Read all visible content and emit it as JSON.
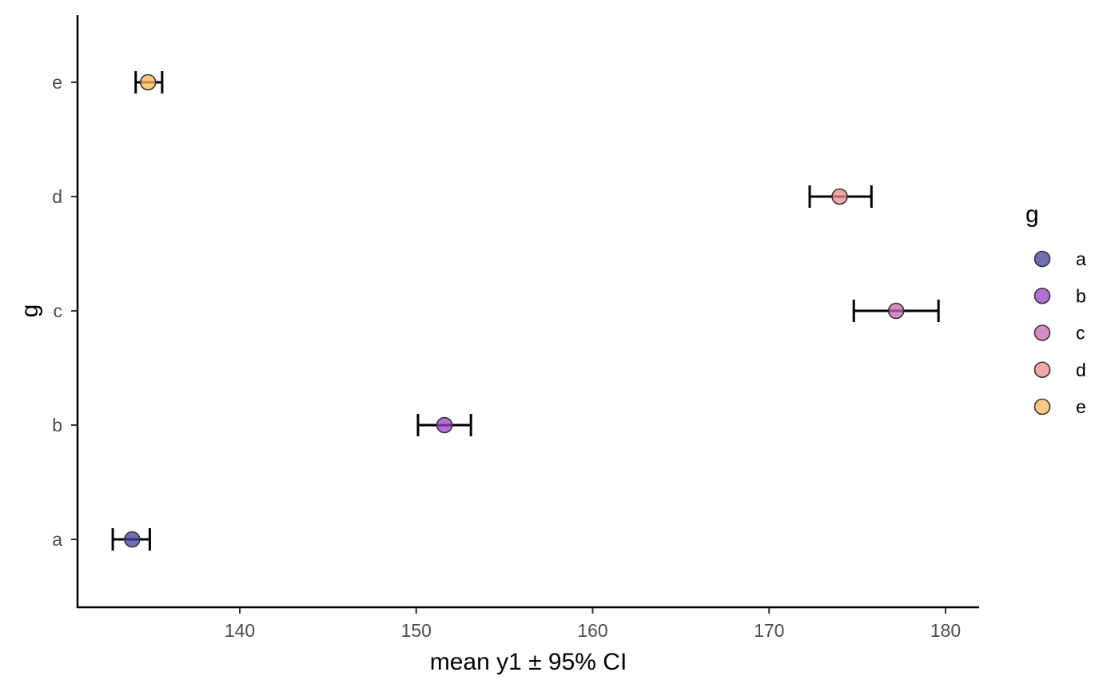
{
  "chart_data": {
    "type": "scatter",
    "subtype": "point-with-horizontal-errorbar",
    "title": "",
    "xlabel": "mean y1 ± 95% CI",
    "ylabel": "g",
    "xlim": [
      130.5,
      182
    ],
    "xticks": [
      140,
      150,
      160,
      170,
      180
    ],
    "categories": [
      "a",
      "b",
      "c",
      "d",
      "e"
    ],
    "series": [
      {
        "points": [
          {
            "category": "a",
            "mean": 133.9,
            "ci_low": 132.8,
            "ci_high": 134.9,
            "color": "#3F3FA0"
          },
          {
            "category": "b",
            "mean": 151.6,
            "ci_low": 150.1,
            "ci_high": 153.1,
            "color": "#9A3FC8"
          },
          {
            "category": "c",
            "mean": 177.2,
            "ci_low": 174.8,
            "ci_high": 179.6,
            "color": "#C566AE"
          },
          {
            "category": "d",
            "mean": 174.0,
            "ci_low": 172.3,
            "ci_high": 175.8,
            "color": "#EE8B87"
          },
          {
            "category": "e",
            "mean": 134.8,
            "ci_low": 134.1,
            "ci_high": 135.6,
            "color": "#FFB658"
          }
        ]
      }
    ],
    "legend": {
      "title": "g",
      "placement": "right",
      "items": [
        {
          "label": "a",
          "color": "#3F3FA0"
        },
        {
          "label": "b",
          "color": "#9A3FC8"
        },
        {
          "label": "c",
          "color": "#C566AE"
        },
        {
          "label": "d",
          "color": "#EE8B87"
        },
        {
          "label": "e",
          "color": "#FFB658"
        }
      ]
    },
    "grid": false,
    "point_alpha": 0.75
  }
}
